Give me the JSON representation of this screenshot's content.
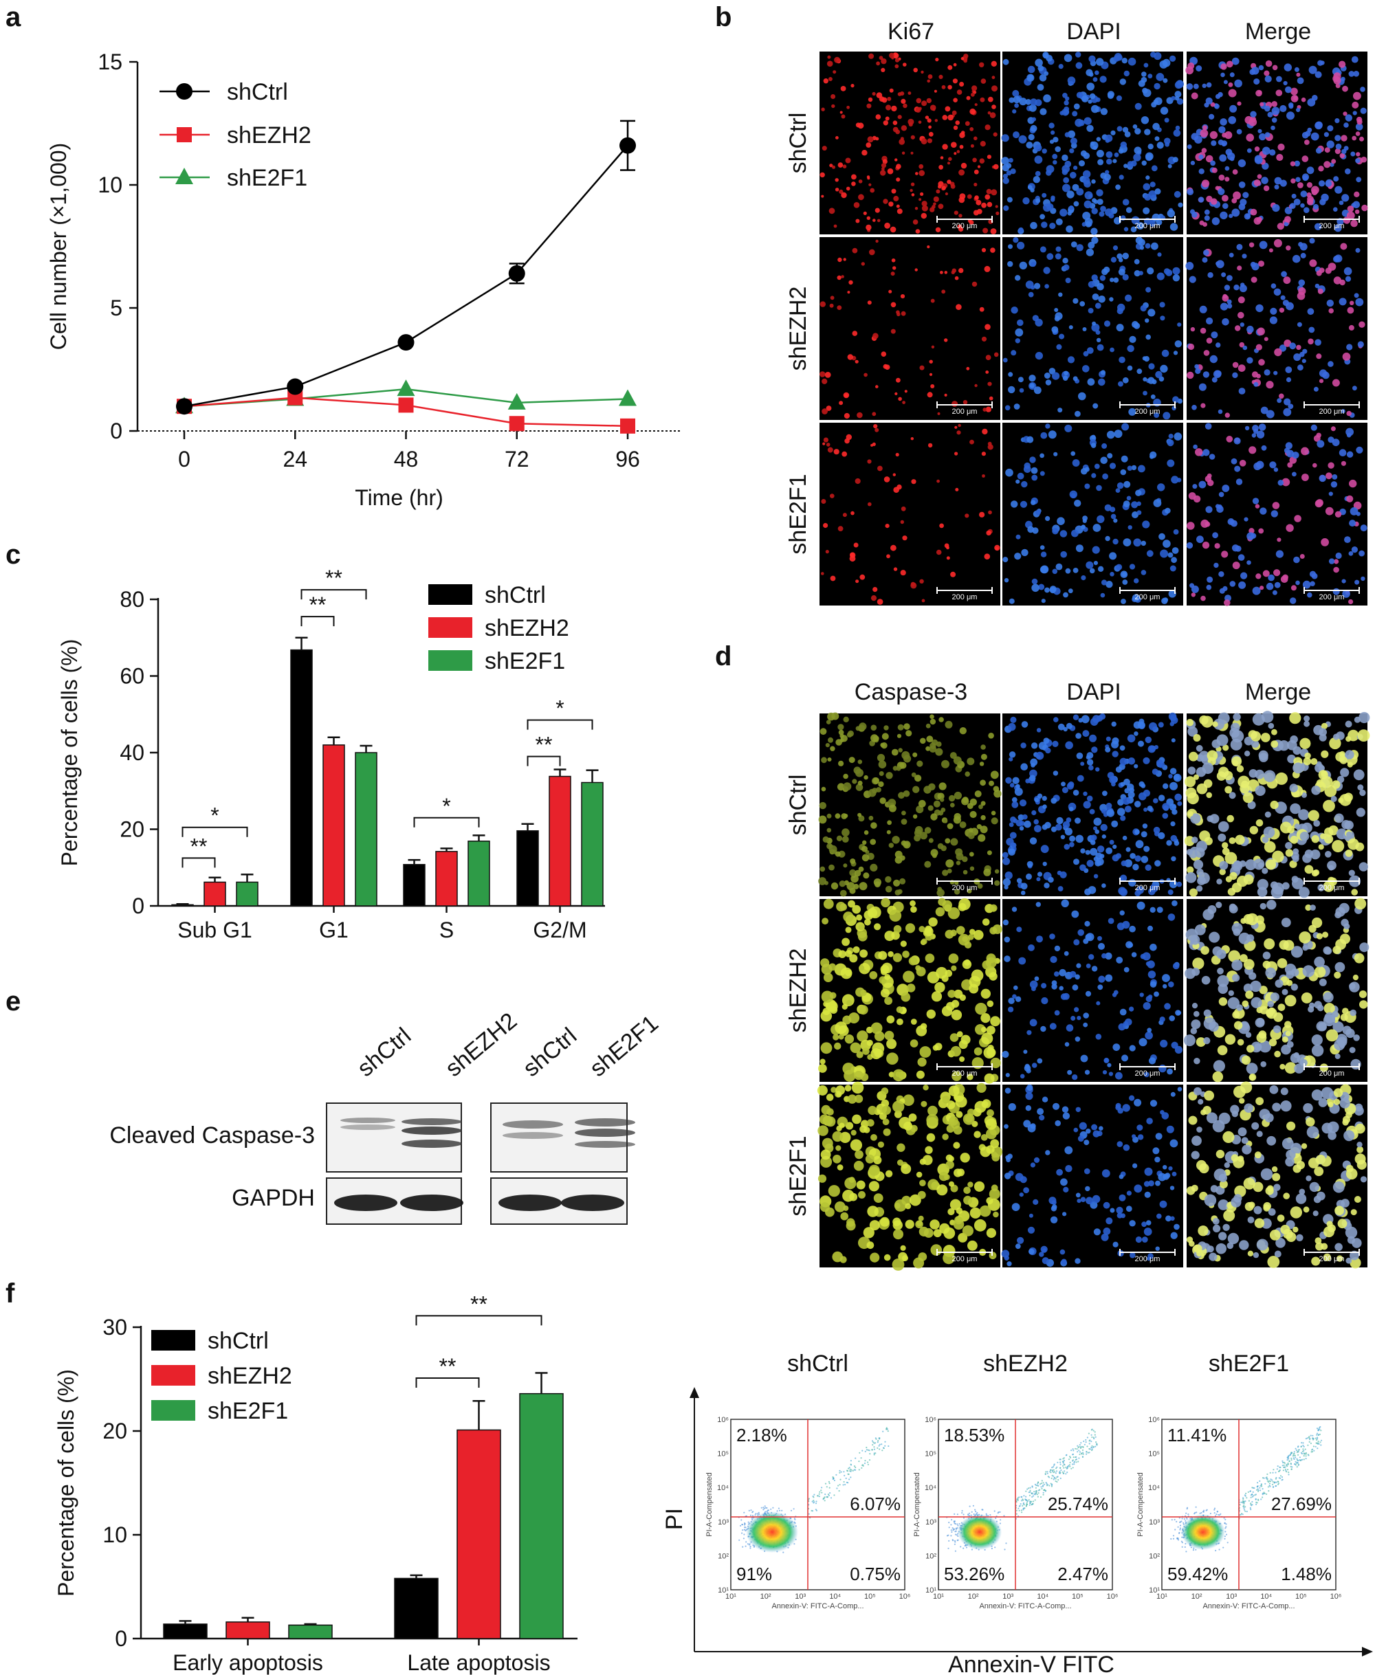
{
  "panel_labels": {
    "a": "a",
    "b": "b",
    "c": "c",
    "d": "d",
    "e": "e",
    "f": "f"
  },
  "colors": {
    "shCtrl": "#000000",
    "shEZH2": "#e8222b",
    "shE2F1": "#2e9b47"
  },
  "chart_data": [
    {
      "id": "a",
      "type": "line",
      "xlabel": "Time (hr)",
      "ylabel": "Cell number (×1,000)",
      "x": [
        0,
        24,
        48,
        72,
        96
      ],
      "xticks": [
        "0",
        "24",
        "48",
        "72",
        "96"
      ],
      "yticks": [
        "0",
        "5",
        "10",
        "15"
      ],
      "ylim": [
        0,
        15
      ],
      "series": [
        {
          "name": "shCtrl",
          "values": [
            1.0,
            1.8,
            3.6,
            6.4,
            11.6
          ],
          "errors": [
            0.0,
            0.1,
            0.1,
            0.4,
            1.0
          ]
        },
        {
          "name": "shEZH2",
          "values": [
            1.0,
            1.35,
            1.05,
            0.3,
            0.2
          ],
          "errors": [
            0.0,
            0.05,
            0.05,
            0.05,
            0.05
          ]
        },
        {
          "name": "shE2F1",
          "values": [
            1.0,
            1.3,
            1.7,
            1.15,
            1.3
          ],
          "errors": [
            0.0,
            0.05,
            0.05,
            0.05,
            0.05
          ]
        }
      ]
    },
    {
      "id": "c",
      "type": "bar",
      "ylabel": "Percentage of cells (%)",
      "categories": [
        "Sub G1",
        "G1",
        "S",
        "G2/M"
      ],
      "yticks": [
        "0",
        "20",
        "40",
        "60",
        "80"
      ],
      "ylim": [
        0,
        80
      ],
      "series": [
        {
          "name": "shCtrl",
          "values": [
            0.3,
            66.8,
            10.8,
            19.6
          ],
          "errors": [
            0.2,
            3.2,
            1.2,
            1.8
          ]
        },
        {
          "name": "shEZH2",
          "values": [
            6.2,
            42.0,
            14.2,
            33.8
          ],
          "errors": [
            1.2,
            2.0,
            0.8,
            1.8
          ]
        },
        {
          "name": "shE2F1",
          "values": [
            6.2,
            40.0,
            16.9,
            32.2
          ],
          "errors": [
            2.0,
            1.8,
            1.5,
            3.2
          ]
        }
      ],
      "significance": [
        {
          "cat": 0,
          "from": 0,
          "to": 1,
          "label": "**",
          "y": 12.5
        },
        {
          "cat": 0,
          "from": 0,
          "to": 2,
          "label": "*",
          "y": 20.5
        },
        {
          "cat": 1,
          "from": 0,
          "to": 1,
          "label": "**",
          "y": 75.5
        },
        {
          "cat": 1,
          "from": 0,
          "to": 2,
          "label": "**",
          "y": 82.5
        },
        {
          "cat": 2,
          "from": 0,
          "to": 2,
          "label": "*",
          "y": 23.0
        },
        {
          "cat": 3,
          "from": 0,
          "to": 1,
          "label": "**",
          "y": 39.0
        },
        {
          "cat": 3,
          "from": 0,
          "to": 2,
          "label": "*",
          "y": 48.5
        }
      ]
    },
    {
      "id": "f",
      "type": "bar",
      "ylabel": "Percentage of cells (%)",
      "categories": [
        "Early apoptosis",
        "Late apoptosis"
      ],
      "yticks": [
        "0",
        "10",
        "20",
        "30"
      ],
      "ylim": [
        0,
        30
      ],
      "series": [
        {
          "name": "shCtrl",
          "values": [
            1.4,
            5.8
          ],
          "errors": [
            0.3,
            0.3
          ]
        },
        {
          "name": "shEZH2",
          "values": [
            1.6,
            20.1
          ],
          "errors": [
            0.4,
            2.8
          ]
        },
        {
          "name": "shE2F1",
          "values": [
            1.3,
            23.6
          ],
          "errors": [
            0.1,
            2.0
          ]
        }
      ],
      "significance": [
        {
          "cat": 1,
          "from": 0,
          "to": 1,
          "label": "**",
          "y": 25.1
        },
        {
          "cat": 1,
          "from": 0,
          "to": 2,
          "label": "**",
          "y": 31.1
        }
      ]
    }
  ],
  "legend": [
    "shCtrl",
    "shEZH2",
    "shE2F1"
  ],
  "panel_b": {
    "columns": [
      "Ki67",
      "DAPI",
      "Merge"
    ],
    "rows": [
      "shCtrl",
      "shEZH2",
      "shE2F1"
    ],
    "scale_bar": "200 μm"
  },
  "panel_d": {
    "columns": [
      "Caspase-3",
      "DAPI",
      "Merge"
    ],
    "rows": [
      "shCtrl",
      "shEZH2",
      "shE2F1"
    ],
    "scale_bar": "200 μm"
  },
  "panel_e": {
    "lanes": [
      "shCtrl",
      "shEZH2",
      "shCtrl",
      "shE2F1"
    ],
    "bands": [
      "Cleaved Caspase-3",
      "GAPDH"
    ]
  },
  "flow": {
    "groups": [
      {
        "name": "shCtrl",
        "ul": "2.18%",
        "ur": "6.07%",
        "ll": "91%",
        "lr": "0.75%"
      },
      {
        "name": "shEZH2",
        "ul": "18.53%",
        "ur": "25.74%",
        "ll": "53.26%",
        "lr": "2.47%"
      },
      {
        "name": "shE2F1",
        "ul": "11.41%",
        "ur": "27.69%",
        "ll": "59.42%",
        "lr": "1.48%"
      }
    ],
    "xlabel": "Annexin-V FITC",
    "ylabel": "PI",
    "mini_xlabel": "Annexin-V: FITC-A-Comp...",
    "mini_ylabel": "PI-A-Compensated",
    "ticks": [
      "10¹",
      "10²",
      "10³",
      "10⁴",
      "10⁵",
      "10⁶"
    ]
  }
}
